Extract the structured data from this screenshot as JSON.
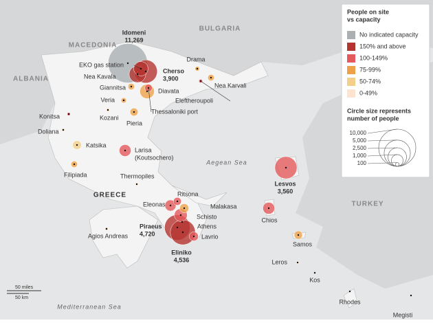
{
  "legend": {
    "title": [
      "People on site",
      "vs capacity"
    ],
    "statuses": [
      {
        "label": "No indicated capacity",
        "color": "#a9afb2"
      },
      {
        "label": "150% and above",
        "color": "#b5342f"
      },
      {
        "label": "100-149%",
        "color": "#e45a5c"
      },
      {
        "label": "75-99%",
        "color": "#eda24a"
      },
      {
        "label": "50-74%",
        "color": "#f3cf8a"
      },
      {
        "label": "0-49%",
        "color": "#fce4d0"
      }
    ],
    "size_title": [
      "Circle size represents",
      "number of people"
    ],
    "size_ticks": [
      {
        "value": 10000,
        "label": "10,000"
      },
      {
        "value": 5000,
        "label": "5,000"
      },
      {
        "value": 2500,
        "label": "2,500"
      },
      {
        "value": 1000,
        "label": "1,000"
      },
      100
    ]
  },
  "regions": {
    "macedonia": "MACEDONIA",
    "bulgaria": "BULGARIA",
    "albania": "ALBANIA",
    "greece": "GREECE",
    "turkey": "TURKEY",
    "aegean": "Aegean Sea",
    "mediterranean": "Mediterranean Sea"
  },
  "scale": {
    "miles": "50 miles",
    "km": "50 km"
  },
  "sites": [
    {
      "name": "Idomeni",
      "status": 0,
      "people": 11269,
      "count": "11,269"
    },
    {
      "name": "EKO gas station",
      "status": 1,
      "people": 1500
    },
    {
      "name": "Nea Kavala",
      "status": 1,
      "people": 2000
    },
    {
      "name": "Cherso",
      "status": 1,
      "people": 3900,
      "count": "3,900"
    },
    {
      "name": "Giannitsa",
      "status": 3,
      "people": 300
    },
    {
      "name": "Diavata",
      "status": 3,
      "people": 1500
    },
    {
      "name": "Thessaloniki port",
      "status": 2,
      "people": 400
    },
    {
      "name": "Drama",
      "status": 3,
      "people": 150
    },
    {
      "name": "Nea Karvali",
      "status": 3,
      "people": 300
    },
    {
      "name": "Eleftheroupoli",
      "status": 2,
      "people": 100
    },
    {
      "name": "Veria",
      "status": 3,
      "people": 200
    },
    {
      "name": "Kozani",
      "status": 3,
      "people": 50
    },
    {
      "name": "Pieria",
      "status": 3,
      "people": 450
    },
    {
      "name": "Konitsa",
      "status": 2,
      "people": 80
    },
    {
      "name": "Doliana",
      "status": 3,
      "people": 50
    },
    {
      "name": "Katsika",
      "status": 4,
      "people": 550
    },
    {
      "name": "Filipiada",
      "status": 3,
      "people": 300
    },
    {
      "name": "Larisa",
      "sub": "(Koutsochero)",
      "status": 2,
      "people": 1000
    },
    {
      "name": "Thermopiles",
      "status": 4,
      "people": 50
    },
    {
      "name": "Ritsona",
      "status": 2,
      "people": 450
    },
    {
      "name": "Eleonas",
      "status": 2,
      "people": 900
    },
    {
      "name": "Malakasa",
      "status": 3,
      "people": 600
    },
    {
      "name": "Schisto",
      "status": 2,
      "people": 1200
    },
    {
      "name": "Piraeus",
      "status": 1,
      "people": 4720,
      "count": "4,720"
    },
    {
      "name": "Eliniko",
      "status": 1,
      "people": 4536,
      "count": "4,536"
    },
    {
      "name": "Lavrio",
      "status": 2,
      "people": 600
    },
    {
      "name": "Agios Andreas",
      "status": 3,
      "people": 50
    },
    {
      "name": "Lesvos",
      "status": 2,
      "people": 3560,
      "count": "3,560"
    },
    {
      "name": "Chios",
      "status": 2,
      "people": 1000
    },
    {
      "name": "Samos",
      "status": 3,
      "people": 500
    },
    {
      "name": "Leros",
      "status": 4,
      "people": 50
    }
  ],
  "places": [
    "Athens",
    "Kos",
    "Rhodes",
    "Megisti"
  ]
}
